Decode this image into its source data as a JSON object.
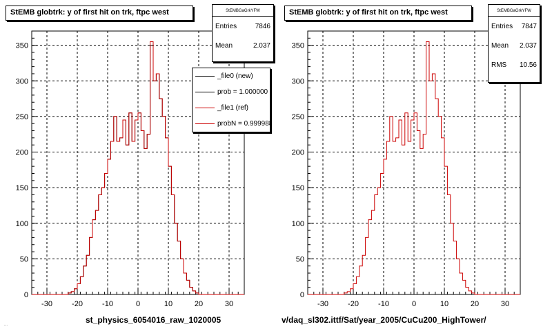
{
  "panels": [
    {
      "title": "StEMB globtrk: y of first hit on trk, ftpc west",
      "stats": {
        "name": "StEMBGaGrkYFW",
        "rows": [
          {
            "label": "Entries",
            "value": "7846"
          },
          {
            "label": "Mean",
            "value": "2.037"
          }
        ]
      },
      "legend": [
        {
          "label": "_file0 (new)",
          "color": "#000000"
        },
        {
          "label": "prob = 1.000000",
          "color": "#000000"
        },
        {
          "label": "_file1 (ref)",
          "color": "#cc0000"
        },
        {
          "label": "probN = 0.999988",
          "color": "#cc0000"
        }
      ],
      "footer": "st_physics_6054016_raw_1020005",
      "footer_small": "..."
    },
    {
      "title": "StEMB globtrk: y of first hit on trk, ftpc west",
      "stats": {
        "name": "StEMBGaGrkYFW",
        "rows": [
          {
            "label": "Entries",
            "value": "7847"
          },
          {
            "label": "Mean",
            "value": "2.037"
          },
          {
            "label": "RMS",
            "value": "10.56"
          }
        ]
      },
      "footer": "v/daq_sl302.ittf/Sat/year_2005/CuCu200_HighTower/"
    }
  ],
  "chart_data": [
    {
      "type": "bar",
      "title": "StEMB globtrk: y of first hit on trk, ftpc west",
      "xlabel": "st_physics_6054016_raw_1020005",
      "ylabel": "",
      "xlim": [
        -35,
        35
      ],
      "ylim": [
        0,
        370
      ],
      "xticks": [
        -30,
        -20,
        -10,
        0,
        10,
        20,
        30
      ],
      "yticks": [
        0,
        50,
        100,
        150,
        200,
        250,
        300,
        350
      ],
      "grid": true,
      "bin_width": 1,
      "x_start": -35,
      "series": [
        {
          "name": "_file0 (new)",
          "color": "#000000",
          "values": [
            0,
            0,
            0,
            0,
            0,
            0,
            0,
            0,
            0,
            0,
            0,
            0,
            2,
            4,
            8,
            15,
            25,
            40,
            55,
            80,
            105,
            118,
            140,
            150,
            170,
            190,
            215,
            250,
            215,
            220,
            245,
            210,
            255,
            215,
            245,
            255,
            230,
            205,
            225,
            350,
            300,
            310,
            275,
            250,
            220,
            180,
            140,
            100,
            75,
            50,
            30,
            20,
            10,
            5,
            2,
            0,
            0,
            0,
            0,
            0,
            0,
            0,
            0,
            0,
            0,
            0,
            0,
            0,
            0,
            0
          ]
        },
        {
          "name": "_file1 (ref)",
          "color": "#cc0000",
          "values": [
            0,
            0,
            0,
            0,
            0,
            0,
            0,
            0,
            0,
            0,
            0,
            0,
            2,
            4,
            8,
            15,
            25,
            40,
            55,
            80,
            105,
            118,
            140,
            150,
            170,
            190,
            215,
            250,
            215,
            220,
            245,
            210,
            255,
            215,
            245,
            255,
            230,
            205,
            225,
            355,
            300,
            310,
            275,
            250,
            220,
            180,
            140,
            100,
            75,
            50,
            30,
            20,
            10,
            5,
            2,
            0,
            0,
            0,
            0,
            0,
            0,
            0,
            0,
            0,
            0,
            0,
            0,
            0,
            0,
            0
          ]
        }
      ]
    },
    {
      "type": "bar",
      "title": "StEMB globtrk: y of first hit on trk, ftpc west",
      "xlabel": "v/daq_sl302.ittf/Sat/year_2005/CuCu200_HighTower/",
      "ylabel": "",
      "xlim": [
        -35,
        35
      ],
      "ylim": [
        0,
        370
      ],
      "xticks": [
        -30,
        -20,
        -10,
        0,
        10,
        20,
        30
      ],
      "yticks": [
        0,
        50,
        100,
        150,
        200,
        250,
        300,
        350
      ],
      "grid": true,
      "bin_width": 1,
      "x_start": -35,
      "series": [
        {
          "name": "_file1 (ref)",
          "color": "#cc0000",
          "values": [
            0,
            0,
            0,
            0,
            0,
            0,
            0,
            0,
            0,
            0,
            0,
            0,
            2,
            4,
            8,
            15,
            25,
            40,
            55,
            80,
            105,
            118,
            140,
            150,
            170,
            190,
            215,
            250,
            215,
            220,
            245,
            210,
            255,
            215,
            245,
            255,
            230,
            205,
            225,
            355,
            300,
            310,
            275,
            250,
            220,
            180,
            140,
            100,
            75,
            50,
            30,
            20,
            10,
            5,
            2,
            0,
            0,
            0,
            0,
            0,
            0,
            0,
            0,
            0,
            0,
            0,
            0,
            0,
            0,
            0
          ]
        }
      ]
    }
  ]
}
